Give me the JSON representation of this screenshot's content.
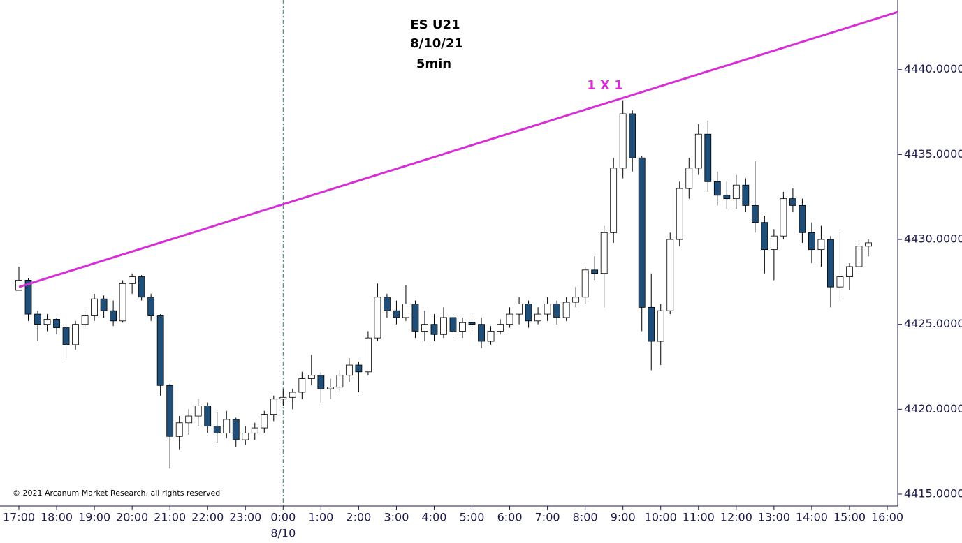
{
  "chart_data": {
    "type": "candlestick",
    "title_lines": [
      "ES U21",
      "8/10/21",
      "5min"
    ],
    "annotation": "1 X 1",
    "date_label": "8/10",
    "copyright": "© 2021 Arcanum Market Research, all rights reserved",
    "up_color": "#ffffff",
    "down_color": "#1f4e79",
    "line_color": "#d62fd6",
    "trendline": {
      "x": [
        "17:00",
        "16:17"
      ],
      "y": [
        4427.2,
        4443.4
      ]
    },
    "divider_x": "0:00",
    "xticks": [
      "17:00",
      "18:00",
      "19:00",
      "20:00",
      "21:00",
      "22:00",
      "23:00",
      "0:00",
      "1:00",
      "2:00",
      "3:00",
      "4:00",
      "5:00",
      "6:00",
      "7:00",
      "8:00",
      "9:00",
      "10:00",
      "11:00",
      "12:00",
      "13:00",
      "14:00",
      "15:00",
      "16:00"
    ],
    "xlim": [
      "17:00",
      "16:00"
    ],
    "ylim": [
      4414.3,
      4444.1
    ],
    "yticks": [
      {
        "value": 4415,
        "label": "4415.0000"
      },
      {
        "value": 4420,
        "label": "4420.0000"
      },
      {
        "value": 4425,
        "label": "4425.0000"
      },
      {
        "value": 4430,
        "label": "4430.0000"
      },
      {
        "value": 4435,
        "label": "4435.0000"
      },
      {
        "value": 4440,
        "label": "4440.0000"
      }
    ],
    "x": [
      "17:00",
      "17:15",
      "17:30",
      "17:45",
      "18:00",
      "18:15",
      "18:30",
      "18:45",
      "19:00",
      "19:15",
      "19:30",
      "19:45",
      "20:00",
      "20:15",
      "20:30",
      "20:45",
      "21:00",
      "21:15",
      "21:30",
      "21:45",
      "22:00",
      "22:15",
      "22:30",
      "22:45",
      "23:00",
      "23:15",
      "23:30",
      "23:45",
      "0:00",
      "0:15",
      "0:30",
      "0:45",
      "1:00",
      "1:15",
      "1:30",
      "1:45",
      "2:00",
      "2:15",
      "2:30",
      "2:45",
      "3:00",
      "3:15",
      "3:30",
      "3:45",
      "4:00",
      "4:15",
      "4:30",
      "4:45",
      "5:00",
      "5:15",
      "5:30",
      "5:45",
      "6:00",
      "6:15",
      "6:30",
      "6:45",
      "7:00",
      "7:15",
      "7:30",
      "7:45",
      "8:00",
      "8:15",
      "8:30",
      "8:45",
      "9:00",
      "9:15",
      "9:30",
      "9:45",
      "10:00",
      "10:15",
      "10:30",
      "10:45",
      "11:00",
      "11:15",
      "11:30",
      "11:45",
      "12:00",
      "12:15",
      "12:30",
      "12:45",
      "13:00",
      "13:15",
      "13:30",
      "13:45",
      "14:00",
      "14:15",
      "14:30",
      "14:45",
      "15:00",
      "15:15",
      "15:30"
    ],
    "open": [
      4427.0,
      4427.6,
      4425.6,
      4425.0,
      4425.3,
      4424.8,
      4423.8,
      4425.0,
      4425.5,
      4426.5,
      4425.8,
      4425.2,
      4427.4,
      4427.8,
      4426.6,
      4425.5,
      4421.4,
      4418.4,
      4419.2,
      4419.6,
      4420.2,
      4419.0,
      4418.6,
      4419.4,
      4418.2,
      4418.6,
      4418.9,
      4419.7,
      4420.6,
      4420.7,
      4421.0,
      4421.8,
      4422.0,
      4421.2,
      4421.3,
      4422.0,
      4422.6,
      4422.2,
      4424.2,
      4426.6,
      4425.8,
      4425.4,
      4426.2,
      4424.6,
      4425.0,
      4424.4,
      4425.4,
      4424.6,
      4425.1,
      4425.0,
      4424.0,
      4424.6,
      4425.0,
      4425.6,
      4426.2,
      4425.2,
      4425.6,
      4426.2,
      4425.4,
      4426.3,
      4426.6,
      4428.2,
      4428.0,
      4430.4,
      4434.2,
      4437.4,
      4434.8,
      4426.0,
      4424.0,
      4425.8,
      4430.0,
      4433.0,
      4434.2,
      4436.2,
      4433.4,
      4432.6,
      4432.4,
      4433.2,
      4432.0,
      4431.0,
      4429.4,
      4430.2,
      4432.4,
      4432.0,
      4430.4,
      4429.4,
      4430.0,
      4427.2,
      4427.8,
      4428.4,
      4429.6
    ],
    "high": [
      4428.4,
      4427.7,
      4425.8,
      4425.6,
      4425.4,
      4425.0,
      4425.2,
      4425.8,
      4426.8,
      4426.7,
      4426.4,
      4427.6,
      4428.0,
      4427.9,
      4426.8,
      4425.6,
      4421.5,
      4419.6,
      4420.0,
      4420.6,
      4420.4,
      4419.8,
      4419.9,
      4419.5,
      4419.0,
      4419.2,
      4419.9,
      4420.8,
      4421.2,
      4421.2,
      4422.2,
      4423.2,
      4422.2,
      4421.8,
      4422.3,
      4423.0,
      4422.8,
      4424.6,
      4427.4,
      4426.8,
      4426.4,
      4427.3,
      4426.4,
      4425.8,
      4425.6,
      4426.0,
      4425.6,
      4425.4,
      4425.5,
      4425.4,
      4424.9,
      4425.3,
      4426.0,
      4426.6,
      4426.4,
      4426.0,
      4426.6,
      4426.4,
      4426.6,
      4427.2,
      4428.4,
      4429.0,
      4430.8,
      4434.8,
      4438.2,
      4437.6,
      4434.9,
      4428.0,
      4426.2,
      4430.4,
      4433.4,
      4434.8,
      4436.8,
      4437.0,
      4434.0,
      4433.4,
      4433.8,
      4433.6,
      4434.6,
      4431.4,
      4430.6,
      4432.8,
      4433.0,
      4432.4,
      4431.0,
      4430.8,
      4430.2,
      4430.6,
      4428.6,
      4429.8,
      4430.0
    ],
    "low": [
      4427.0,
      4425.2,
      4424.0,
      4424.6,
      4424.4,
      4423.0,
      4423.5,
      4424.8,
      4425.2,
      4425.4,
      4424.9,
      4425.1,
      4426.8,
      4426.4,
      4425.2,
      4420.8,
      4416.5,
      4417.6,
      4418.5,
      4419.0,
      4418.6,
      4418.0,
      4418.3,
      4417.8,
      4417.9,
      4418.2,
      4418.6,
      4419.3,
      4420.2,
      4420.0,
      4420.6,
      4421.4,
      4420.4,
      4420.6,
      4421.0,
      4421.6,
      4421.0,
      4422.0,
      4424.0,
      4425.4,
      4425.0,
      4425.2,
      4424.2,
      4424.0,
      4424.0,
      4424.2,
      4424.2,
      4424.2,
      4424.5,
      4423.6,
      4423.8,
      4424.4,
      4424.8,
      4425.0,
      4424.8,
      4425.0,
      4425.2,
      4425.0,
      4425.2,
      4426.0,
      4426.2,
      4427.6,
      4426.0,
      4429.8,
      4433.6,
      4434.0,
      4424.6,
      4422.3,
      4422.6,
      4425.6,
      4429.6,
      4432.4,
      4433.8,
      4432.8,
      4432.0,
      4431.8,
      4431.8,
      4431.6,
      4430.4,
      4428.0,
      4427.6,
      4430.0,
      4431.6,
      4429.8,
      4428.6,
      4428.4,
      4426.0,
      4426.4,
      4427.0,
      4428.2,
      4429.0
    ],
    "close": [
      4427.6,
      4425.6,
      4425.0,
      4425.3,
      4424.8,
      4423.8,
      4425.0,
      4425.5,
      4426.5,
      4425.8,
      4425.2,
      4427.4,
      4427.8,
      4426.6,
      4425.5,
      4421.4,
      4418.4,
      4419.2,
      4419.6,
      4420.2,
      4419.0,
      4418.6,
      4419.4,
      4418.2,
      4418.6,
      4418.9,
      4419.7,
      4420.6,
      4420.7,
      4421.0,
      4421.8,
      4422.0,
      4421.2,
      4421.3,
      4422.0,
      4422.6,
      4422.2,
      4424.2,
      4426.6,
      4425.8,
      4425.4,
      4426.2,
      4424.6,
      4425.0,
      4424.4,
      4425.4,
      4424.6,
      4425.1,
      4425.0,
      4424.0,
      4424.6,
      4425.0,
      4425.6,
      4426.2,
      4425.2,
      4425.6,
      4426.2,
      4425.4,
      4426.3,
      4426.6,
      4428.2,
      4428.0,
      4430.4,
      4434.2,
      4437.4,
      4434.8,
      4426.0,
      4424.0,
      4425.8,
      4430.0,
      4433.0,
      4434.2,
      4436.2,
      4433.4,
      4432.6,
      4432.4,
      4433.2,
      4432.0,
      4431.0,
      4429.4,
      4430.2,
      4432.4,
      4432.0,
      4430.4,
      4429.4,
      4430.0,
      4427.2,
      4427.8,
      4428.4,
      4429.6,
      4429.8
    ]
  }
}
